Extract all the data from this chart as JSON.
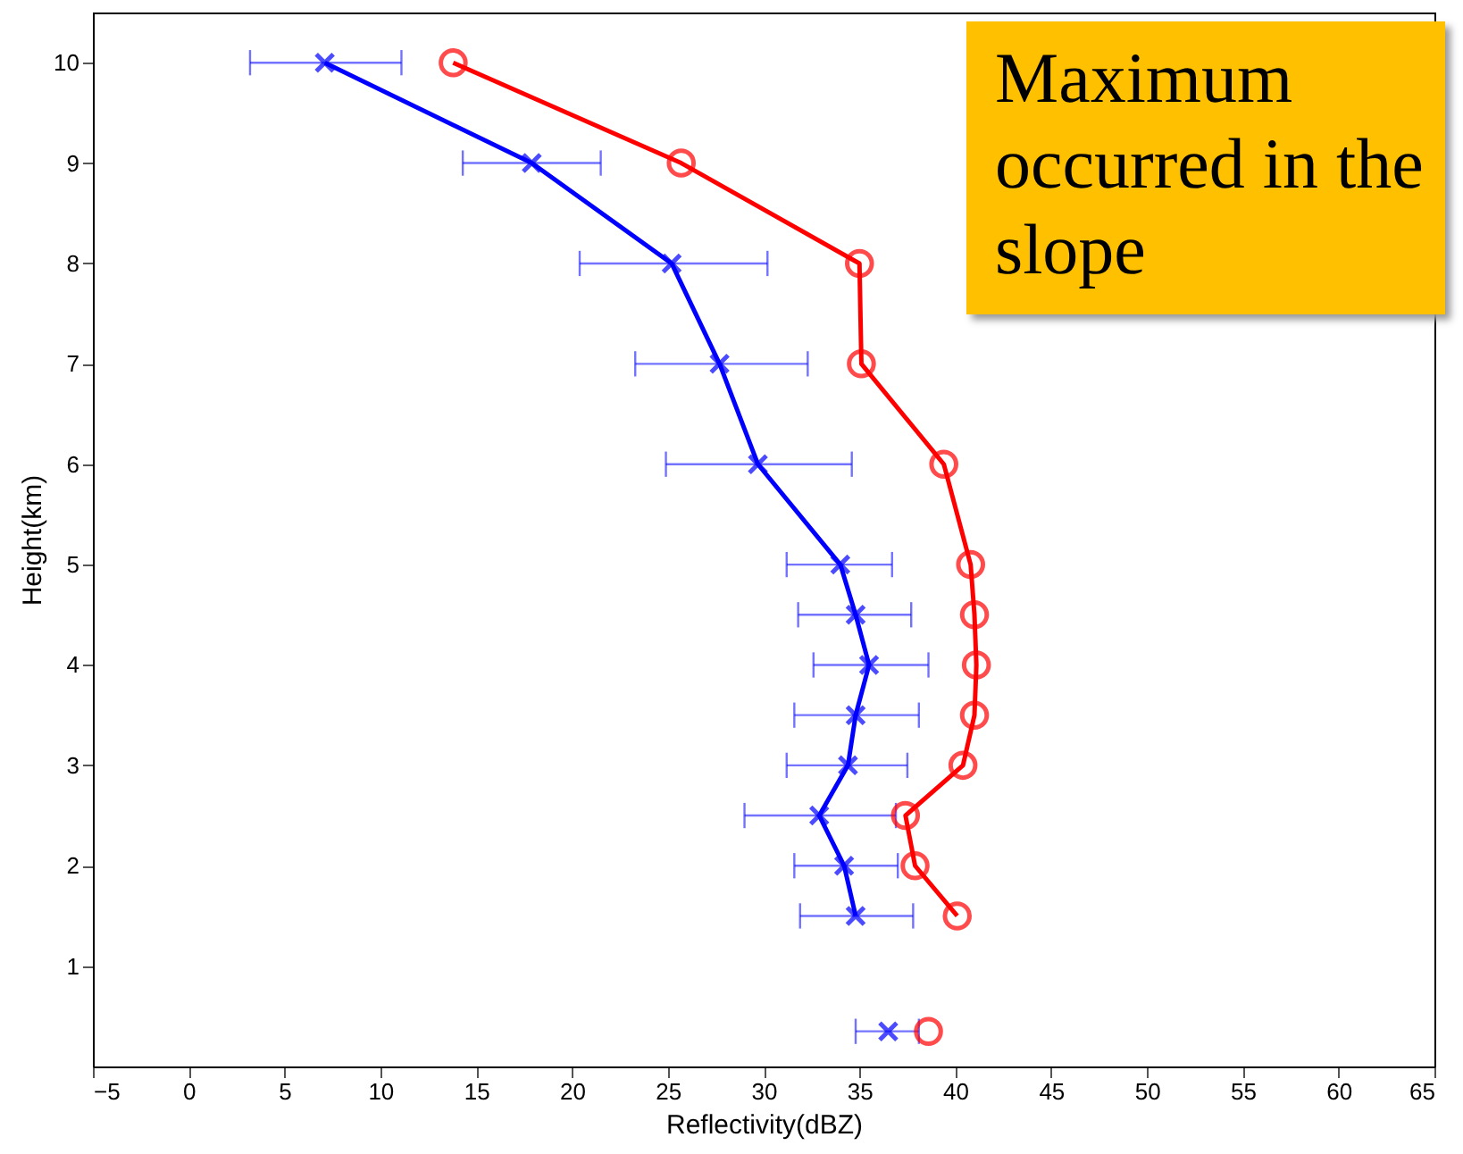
{
  "chart_data": {
    "type": "line",
    "xlabel": "Reflectivity(dBZ)",
    "ylabel": "Height(km)",
    "xlim": [
      -5,
      65
    ],
    "xticks": [
      -5,
      0,
      5,
      10,
      15,
      20,
      25,
      30,
      35,
      40,
      45,
      50,
      55,
      60,
      65
    ],
    "ylim": [
      0,
      10.5
    ],
    "yticks": [
      1,
      2,
      3,
      4,
      5,
      6,
      7,
      8,
      9,
      10
    ],
    "series": [
      {
        "color": "#0000ff",
        "marker": "cross",
        "x": [
          7.1,
          17.9,
          25.2,
          27.7,
          29.7,
          34.0,
          34.8,
          35.5,
          34.8,
          34.4,
          32.9,
          34.2,
          34.8
        ],
        "values": [
          10,
          9,
          8,
          7,
          6,
          5,
          4.5,
          4,
          3.5,
          3,
          2.5,
          2,
          1.5
        ],
        "xerrors": [
          [
            3.2,
            11.1
          ],
          [
            14.3,
            21.5
          ],
          [
            20.4,
            30.2
          ],
          [
            23.3,
            32.3
          ],
          [
            24.9,
            34.6
          ],
          [
            31.2,
            36.7
          ],
          [
            31.8,
            37.7
          ],
          [
            32.6,
            38.6
          ],
          [
            31.6,
            38.1
          ],
          [
            31.2,
            37.5
          ],
          [
            29.0,
            36.9
          ],
          [
            31.6,
            37.0
          ],
          [
            31.9,
            37.8
          ]
        ]
      },
      {
        "color": "#ff0000",
        "marker": "circle",
        "x": [
          13.8,
          25.7,
          35.0,
          35.1,
          39.4,
          40.8,
          41.0,
          41.1,
          41.0,
          40.4,
          37.4,
          37.9,
          40.1
        ],
        "values": [
          10,
          9,
          8,
          7,
          6,
          5,
          4.5,
          4,
          3.5,
          3,
          2.5,
          2,
          1.5
        ]
      },
      {
        "type": "scatter",
        "color": "#0000ff",
        "marker": "cross",
        "x": [
          36.5
        ],
        "values": [
          0.35
        ],
        "xerrors": [
          [
            34.8,
            38.1
          ]
        ]
      },
      {
        "type": "scatter",
        "color": "#ff0000",
        "marker": "circle",
        "x": [
          38.6
        ],
        "values": [
          0.35
        ]
      }
    ],
    "annotations": [
      "Maximum occurred in the slope"
    ]
  }
}
